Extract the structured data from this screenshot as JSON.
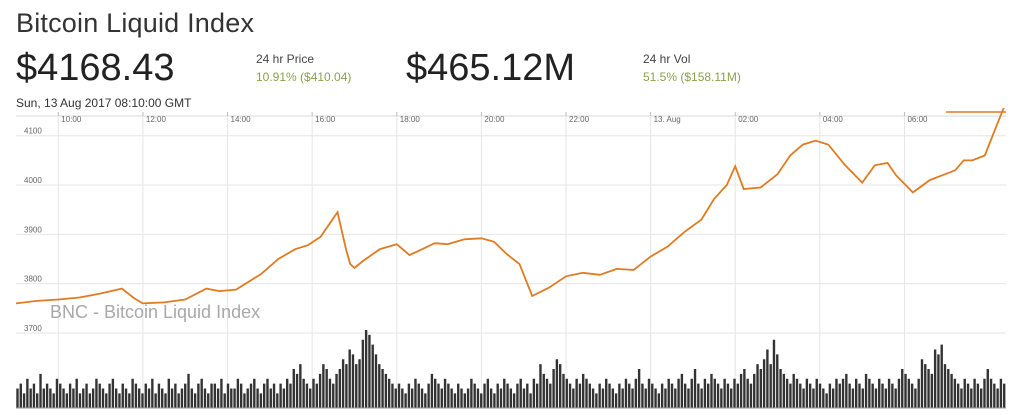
{
  "header": {
    "title": "Bitcoin Liquid Index",
    "price": "$4168.43",
    "price_label": "24 hr Price",
    "price_change": "10.91% ($410.04)",
    "volume": "$465.12M",
    "volume_label": "24 hr Vol",
    "volume_change": "51.5% ($158.11M)",
    "timestamp": "Sun, 13 Aug 2017 08:10:00 GMT"
  },
  "colors": {
    "line": "#e07b22",
    "change": "#8aa24a",
    "volume_bars": "#333333",
    "grid": "#e6e6e6"
  },
  "chart_data": {
    "type": "line",
    "title": "",
    "watermark": "BNC - Bitcoin Liquid Index",
    "x_tick_labels": [
      "10:00",
      "12:00",
      "14:00",
      "16:00",
      "18:00",
      "20:00",
      "22:00",
      "13. Aug",
      "02:00",
      "04:00",
      "06:00"
    ],
    "y_tick_labels": [
      "3700",
      "3800",
      "3900",
      "4000",
      "4100"
    ],
    "ylim": [
      3700,
      4140
    ],
    "xlim_hours": [
      9,
      32.4
    ],
    "series": [
      {
        "x": [
          9.0,
          9.5,
          10.0,
          10.5,
          11.0,
          11.5,
          11.8,
          12.0,
          12.5,
          13.0,
          13.5,
          13.8,
          14.2,
          14.8,
          15.2,
          15.6,
          15.9,
          16.2,
          16.6,
          16.8,
          16.9,
          17.0,
          17.2,
          17.6,
          18.0,
          18.3,
          18.6,
          18.9,
          19.2,
          19.6,
          20.0,
          20.3,
          20.6,
          20.9,
          21.2,
          21.6,
          22.0,
          22.4,
          22.8,
          23.2,
          23.6,
          24.0,
          24.4,
          24.8,
          25.2,
          25.5,
          25.8,
          26.0,
          26.2,
          26.6,
          27.0,
          27.3,
          27.6,
          27.9,
          28.2,
          28.6,
          29.0,
          29.3,
          29.6,
          29.8,
          30.2,
          30.6,
          30.9,
          31.2,
          31.4,
          31.6,
          31.9,
          32.2,
          32.4
        ],
        "y": [
          3760,
          3765,
          3768,
          3772,
          3780,
          3790,
          3770,
          3760,
          3762,
          3768,
          3790,
          3785,
          3788,
          3820,
          3850,
          3870,
          3878,
          3895,
          3945,
          3870,
          3840,
          3832,
          3846,
          3870,
          3880,
          3858,
          3870,
          3882,
          3880,
          3890,
          3892,
          3885,
          3860,
          3840,
          3775,
          3792,
          3815,
          3822,
          3818,
          3830,
          3828,
          3855,
          3875,
          3905,
          3930,
          3972,
          4000,
          4038,
          3992,
          3995,
          4022,
          4060,
          4082,
          4090,
          4082,
          4040,
          4005,
          4040,
          4045,
          4020,
          3985,
          4010,
          4020,
          4030,
          4050,
          4050,
          4060,
          4125,
          4168
        ],
        "marker": "none"
      }
    ],
    "volume": {
      "values": [
        4,
        5,
        3,
        6,
        4,
        5,
        3,
        7,
        4,
        5,
        4,
        3,
        6,
        5,
        4,
        3,
        5,
        4,
        6,
        3,
        4,
        5,
        3,
        4,
        6,
        5,
        4,
        3,
        5,
        6,
        4,
        3,
        5,
        4,
        3,
        6,
        5,
        4,
        3,
        5,
        4,
        6,
        3,
        5,
        4,
        3,
        6,
        4,
        5,
        3,
        4,
        5,
        7,
        4,
        3,
        5,
        6,
        4,
        3,
        5,
        5,
        4,
        6,
        3,
        5,
        4,
        4,
        6,
        5,
        3,
        4,
        5,
        6,
        4,
        3,
        5,
        6,
        4,
        5,
        3,
        5,
        4,
        6,
        5,
        8,
        7,
        9,
        6,
        5,
        4,
        6,
        5,
        7,
        9,
        8,
        6,
        5,
        7,
        8,
        10,
        9,
        12,
        11,
        9,
        10,
        14,
        16,
        15,
        13,
        11,
        9,
        8,
        7,
        6,
        5,
        4,
        5,
        4,
        3,
        5,
        4,
        6,
        5,
        4,
        3,
        5,
        7,
        6,
        5,
        4,
        6,
        5,
        4,
        3,
        5,
        4,
        3,
        4,
        6,
        5,
        4,
        3,
        5,
        6,
        4,
        3,
        5,
        4,
        6,
        5,
        4,
        3,
        5,
        6,
        4,
        5,
        3,
        6,
        5,
        9,
        7,
        6,
        5,
        8,
        10,
        9,
        7,
        6,
        5,
        4,
        6,
        5,
        7,
        6,
        5,
        4,
        3,
        5,
        4,
        6,
        5,
        4,
        3,
        5,
        4,
        6,
        5,
        4,
        6,
        8,
        5,
        4,
        6,
        5,
        4,
        3,
        5,
        4,
        6,
        5,
        4,
        6,
        7,
        5,
        4,
        6,
        8,
        5,
        4,
        6,
        5,
        7,
        6,
        5,
        4,
        6,
        5,
        4,
        6,
        5,
        7,
        8,
        6,
        5,
        7,
        9,
        8,
        10,
        12,
        9,
        14,
        11,
        8,
        7,
        6,
        5,
        7,
        6,
        5,
        4,
        6,
        5,
        4,
        6,
        5,
        4,
        3,
        5,
        4,
        6,
        5,
        6,
        7,
        5,
        4,
        6,
        5,
        4,
        7,
        6,
        5,
        4,
        6,
        5,
        4,
        6,
        5,
        4,
        6,
        8,
        7,
        6,
        5,
        4,
        6,
        10,
        9,
        8,
        7,
        12,
        11,
        13,
        9,
        8,
        7,
        6,
        5,
        4,
        6,
        5,
        4,
        6,
        5,
        4,
        6,
        8,
        6,
        5,
        4,
        6,
        5
      ]
    }
  }
}
